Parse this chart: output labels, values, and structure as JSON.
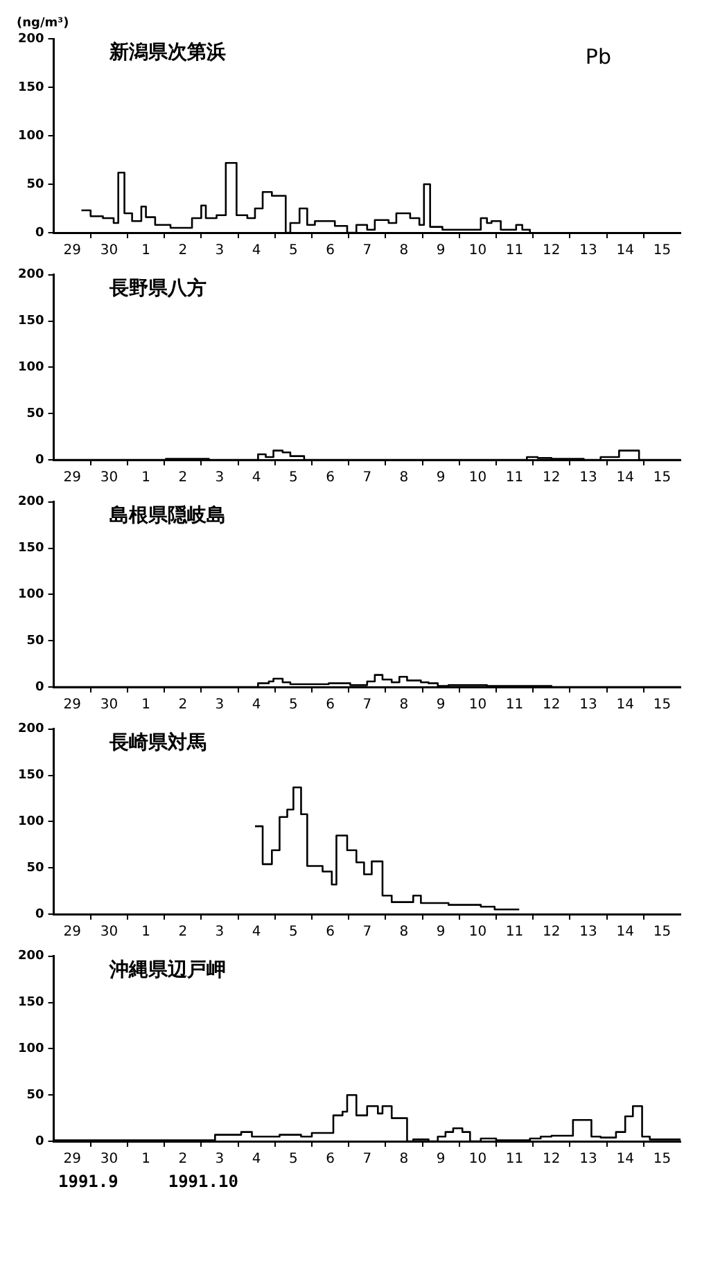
{
  "chart_data": [
    {
      "type": "step",
      "title": "新潟県次第浜",
      "subtitle": "Pb",
      "ylabel": "(ng/m³)",
      "color": "#000000",
      "x": [
        "1991-09-29T18:00",
        "1991-09-30T00:00",
        "1991-09-30T08:00",
        "1991-09-30T15:00",
        "1991-09-30T18:00",
        "1991-09-30T22:00",
        "1991-10-01T03:00",
        "1991-10-01T09:00",
        "1991-10-01T12:00",
        "1991-10-01T18:00",
        "1991-10-02T04:00",
        "1991-10-02T18:00",
        "1991-10-03T00:00",
        "1991-10-03T03:00",
        "1991-10-03T10:00",
        "1991-10-03T16:00",
        "1991-10-03T23:00",
        "1991-10-04T06:00",
        "1991-10-04T11:00",
        "1991-10-04T16:00",
        "1991-10-04T22:00",
        "1991-10-05T07:00",
        "1991-10-05T10:00",
        "1991-10-05T16:00",
        "1991-10-05T21:00",
        "1991-10-06T02:00",
        "1991-10-06T15:00",
        "1991-10-06T23:00",
        "1991-10-07T05:00",
        "1991-10-07T12:00",
        "1991-10-07T17:00",
        "1991-10-08T02:00",
        "1991-10-08T07:00",
        "1991-10-08T16:00",
        "1991-10-08T22:00",
        "1991-10-09T01:00",
        "1991-10-09T05:00",
        "1991-10-09T13:00",
        "1991-10-10T14:00",
        "1991-10-10T18:00",
        "1991-10-10T21:00",
        "1991-10-11T03:00",
        "1991-10-11T13:00",
        "1991-10-11T17:00",
        "1991-10-11T22:00"
      ],
      "values": [
        23,
        17,
        15,
        10,
        62,
        20,
        12,
        27,
        16,
        8,
        5,
        15,
        28,
        15,
        18,
        72,
        18,
        15,
        25,
        42,
        38,
        0,
        10,
        25,
        8,
        12,
        7,
        0,
        8,
        3,
        13,
        10,
        20,
        15,
        8,
        50,
        6,
        3,
        15,
        10,
        12,
        3,
        8,
        3,
        0
      ],
      "xlim": [
        "1991-09-29",
        "1991-10-16"
      ],
      "xticks": [
        {
          "value": "1991-09-29T12:00",
          "label": "29"
        },
        {
          "value": "1991-09-30",
          "label": null
        },
        {
          "value": "1991-09-30T12:00",
          "label": "30"
        },
        {
          "value": "1991-10-01",
          "label": null
        },
        {
          "value": "1991-10-01T12:00",
          "label": "1"
        },
        {
          "value": "1991-10-02",
          "label": null
        },
        {
          "value": "1991-10-02T12:00",
          "label": "2"
        },
        {
          "value": "1991-10-03",
          "label": null
        },
        {
          "value": "1991-10-03T12:00",
          "label": "3"
        },
        {
          "value": "1991-10-04",
          "label": null
        },
        {
          "value": "1991-10-04T12:00",
          "label": "4"
        },
        {
          "value": "1991-10-05",
          "label": null
        },
        {
          "value": "1991-10-05T12:00",
          "label": "5"
        },
        {
          "value": "1991-10-06",
          "label": null
        },
        {
          "value": "1991-10-06T12:00",
          "label": "6"
        },
        {
          "value": "1991-10-07",
          "label": null
        },
        {
          "value": "1991-10-07T12:00",
          "label": "7"
        },
        {
          "value": "1991-10-08",
          "label": null
        },
        {
          "value": "1991-10-08T12:00",
          "label": "8"
        },
        {
          "value": "1991-10-09",
          "label": null
        },
        {
          "value": "1991-10-09T12:00",
          "label": "9"
        },
        {
          "value": "1991-10-10",
          "label": null
        },
        {
          "value": "1991-10-10T12:00",
          "label": "10"
        },
        {
          "value": "1991-10-11",
          "label": null
        },
        {
          "value": "1991-10-11T12:00",
          "label": "11"
        },
        {
          "value": "1991-10-12",
          "label": null
        },
        {
          "value": "1991-10-12T12:00",
          "label": "12"
        },
        {
          "value": "1991-10-13",
          "label": null
        },
        {
          "value": "1991-10-13T12:00",
          "label": "13"
        },
        {
          "value": "1991-10-14",
          "label": null
        },
        {
          "value": "1991-10-14T12:00",
          "label": "14"
        },
        {
          "value": "1991-10-15",
          "label": null
        },
        {
          "value": "1991-10-15T12:00",
          "label": "15"
        }
      ],
      "ylim": [
        0,
        200
      ],
      "yticks": [
        0,
        50,
        100,
        150,
        200
      ]
    },
    {
      "type": "step",
      "title": "長野県八方",
      "color": "#000000",
      "x": [
        "1991-09-29T00:00",
        "1991-10-02T01:00",
        "1991-10-03T05:00",
        "1991-10-04T13:00",
        "1991-10-04T18:00",
        "1991-10-04T23:00",
        "1991-10-05T05:00",
        "1991-10-05T10:00",
        "1991-10-05T19:00",
        "1991-10-11T20:00",
        "1991-10-12T03:00",
        "1991-10-12T12:00",
        "1991-10-13T09:00",
        "1991-10-13T20:00",
        "1991-10-14T08:00",
        "1991-10-14T21:00",
        "1991-10-16T00:00"
      ],
      "values": [
        0,
        1,
        0,
        6,
        3,
        10,
        8,
        4,
        0,
        3,
        2,
        1,
        0,
        3,
        10,
        0,
        0
      ],
      "xlim": [
        "1991-09-29",
        "1991-10-16"
      ],
      "xticks": [
        {
          "value": "1991-09-29T12:00",
          "label": "29"
        },
        {
          "value": "1991-09-30",
          "label": null
        },
        {
          "value": "1991-09-30T12:00",
          "label": "30"
        },
        {
          "value": "1991-10-01",
          "label": null
        },
        {
          "value": "1991-10-01T12:00",
          "label": "1"
        },
        {
          "value": "1991-10-02",
          "label": null
        },
        {
          "value": "1991-10-02T12:00",
          "label": "2"
        },
        {
          "value": "1991-10-03",
          "label": null
        },
        {
          "value": "1991-10-03T12:00",
          "label": "3"
        },
        {
          "value": "1991-10-04",
          "label": null
        },
        {
          "value": "1991-10-04T12:00",
          "label": "4"
        },
        {
          "value": "1991-10-05",
          "label": null
        },
        {
          "value": "1991-10-05T12:00",
          "label": "5"
        },
        {
          "value": "1991-10-06",
          "label": null
        },
        {
          "value": "1991-10-06T12:00",
          "label": "6"
        },
        {
          "value": "1991-10-07",
          "label": null
        },
        {
          "value": "1991-10-07T12:00",
          "label": "7"
        },
        {
          "value": "1991-10-08",
          "label": null
        },
        {
          "value": "1991-10-08T12:00",
          "label": "8"
        },
        {
          "value": "1991-10-09",
          "label": null
        },
        {
          "value": "1991-10-09T12:00",
          "label": "9"
        },
        {
          "value": "1991-10-10",
          "label": null
        },
        {
          "value": "1991-10-10T12:00",
          "label": "10"
        },
        {
          "value": "1991-10-11",
          "label": null
        },
        {
          "value": "1991-10-11T12:00",
          "label": "11"
        },
        {
          "value": "1991-10-12",
          "label": null
        },
        {
          "value": "1991-10-12T12:00",
          "label": "12"
        },
        {
          "value": "1991-10-13",
          "label": null
        },
        {
          "value": "1991-10-13T12:00",
          "label": "13"
        },
        {
          "value": "1991-10-14",
          "label": null
        },
        {
          "value": "1991-10-14T12:00",
          "label": "14"
        },
        {
          "value": "1991-10-15",
          "label": null
        },
        {
          "value": "1991-10-15T12:00",
          "label": "15"
        }
      ],
      "ylim": [
        0,
        200
      ],
      "yticks": [
        0,
        50,
        100,
        150,
        200
      ]
    },
    {
      "type": "step",
      "title": "島根県隠岐島",
      "color": "#000000",
      "x": [
        "1991-09-29T00:00",
        "1991-10-04T13:00",
        "1991-10-04T20:00",
        "1991-10-04T23:00",
        "1991-10-05T05:00",
        "1991-10-05T10:00",
        "1991-10-06T11:00",
        "1991-10-07T01:00",
        "1991-10-07T12:00",
        "1991-10-07T17:00",
        "1991-10-07T22:00",
        "1991-10-08T04:00",
        "1991-10-08T09:00",
        "1991-10-08T14:00",
        "1991-10-08T23:00",
        "1991-10-09T04:00",
        "1991-10-09T10:00",
        "1991-10-09T17:00",
        "1991-10-10T18:00",
        "1991-10-12T12:00",
        "1991-10-16T00:00"
      ],
      "values": [
        0,
        4,
        6,
        9,
        5,
        3,
        4,
        2,
        6,
        13,
        8,
        5,
        11,
        7,
        5,
        4,
        1,
        2,
        1,
        0,
        0
      ],
      "xlim": [
        "1991-09-29",
        "1991-10-16"
      ],
      "xticks": [
        {
          "value": "1991-09-29T12:00",
          "label": "29"
        },
        {
          "value": "1991-09-30",
          "label": null
        },
        {
          "value": "1991-09-30T12:00",
          "label": "30"
        },
        {
          "value": "1991-10-01",
          "label": null
        },
        {
          "value": "1991-10-01T12:00",
          "label": "1"
        },
        {
          "value": "1991-10-02",
          "label": null
        },
        {
          "value": "1991-10-02T12:00",
          "label": "2"
        },
        {
          "value": "1991-10-03",
          "label": null
        },
        {
          "value": "1991-10-03T12:00",
          "label": "3"
        },
        {
          "value": "1991-10-04",
          "label": null
        },
        {
          "value": "1991-10-04T12:00",
          "label": "4"
        },
        {
          "value": "1991-10-05",
          "label": null
        },
        {
          "value": "1991-10-05T12:00",
          "label": "5"
        },
        {
          "value": "1991-10-06",
          "label": null
        },
        {
          "value": "1991-10-06T12:00",
          "label": "6"
        },
        {
          "value": "1991-10-07",
          "label": null
        },
        {
          "value": "1991-10-07T12:00",
          "label": "7"
        },
        {
          "value": "1991-10-08",
          "label": null
        },
        {
          "value": "1991-10-08T12:00",
          "label": "8"
        },
        {
          "value": "1991-10-09",
          "label": null
        },
        {
          "value": "1991-10-09T12:00",
          "label": "9"
        },
        {
          "value": "1991-10-10",
          "label": null
        },
        {
          "value": "1991-10-10T12:00",
          "label": "10"
        },
        {
          "value": "1991-10-11",
          "label": null
        },
        {
          "value": "1991-10-11T12:00",
          "label": "11"
        },
        {
          "value": "1991-10-12",
          "label": null
        },
        {
          "value": "1991-10-12T12:00",
          "label": "12"
        },
        {
          "value": "1991-10-13",
          "label": null
        },
        {
          "value": "1991-10-13T12:00",
          "label": "13"
        },
        {
          "value": "1991-10-14",
          "label": null
        },
        {
          "value": "1991-10-14T12:00",
          "label": "14"
        },
        {
          "value": "1991-10-15",
          "label": null
        },
        {
          "value": "1991-10-15T12:00",
          "label": "15"
        }
      ],
      "ylim": [
        0,
        200
      ],
      "yticks": [
        0,
        50,
        100,
        150,
        200
      ]
    },
    {
      "type": "step",
      "title": "長崎県対馬",
      "color": "#000000",
      "x": [
        "1991-10-04T11:00",
        "1991-10-04T16:00",
        "1991-10-04T22:00",
        "1991-10-05T03:00",
        "1991-10-05T08:00",
        "1991-10-05T12:00",
        "1991-10-05T17:00",
        "1991-10-05T21:00",
        "1991-10-06T07:00",
        "1991-10-06T13:00",
        "1991-10-06T16:00",
        "1991-10-06T23:00",
        "1991-10-07T05:00",
        "1991-10-07T10:00",
        "1991-10-07T15:00",
        "1991-10-07T22:00",
        "1991-10-08T04:00",
        "1991-10-08T18:00",
        "1991-10-08T23:00",
        "1991-10-09T17:00",
        "1991-10-10T14:00",
        "1991-10-10T23:00",
        "1991-10-11T15:00"
      ],
      "values": [
        95,
        54,
        69,
        105,
        113,
        137,
        108,
        52,
        46,
        32,
        85,
        69,
        56,
        43,
        57,
        20,
        13,
        20,
        12,
        10,
        8,
        5,
        5
      ],
      "xlim": [
        "1991-09-29",
        "1991-10-16"
      ],
      "xticks": [
        {
          "value": "1991-09-29T12:00",
          "label": "29"
        },
        {
          "value": "1991-09-30",
          "label": null
        },
        {
          "value": "1991-09-30T12:00",
          "label": "30"
        },
        {
          "value": "1991-10-01",
          "label": null
        },
        {
          "value": "1991-10-01T12:00",
          "label": "1"
        },
        {
          "value": "1991-10-02",
          "label": null
        },
        {
          "value": "1991-10-02T12:00",
          "label": "2"
        },
        {
          "value": "1991-10-03",
          "label": null
        },
        {
          "value": "1991-10-03T12:00",
          "label": "3"
        },
        {
          "value": "1991-10-04",
          "label": null
        },
        {
          "value": "1991-10-04T12:00",
          "label": "4"
        },
        {
          "value": "1991-10-05",
          "label": null
        },
        {
          "value": "1991-10-05T12:00",
          "label": "5"
        },
        {
          "value": "1991-10-06",
          "label": null
        },
        {
          "value": "1991-10-06T12:00",
          "label": "6"
        },
        {
          "value": "1991-10-07",
          "label": null
        },
        {
          "value": "1991-10-07T12:00",
          "label": "7"
        },
        {
          "value": "1991-10-08",
          "label": null
        },
        {
          "value": "1991-10-08T12:00",
          "label": "8"
        },
        {
          "value": "1991-10-09",
          "label": null
        },
        {
          "value": "1991-10-09T12:00",
          "label": "9"
        },
        {
          "value": "1991-10-10",
          "label": null
        },
        {
          "value": "1991-10-10T12:00",
          "label": "10"
        },
        {
          "value": "1991-10-11",
          "label": null
        },
        {
          "value": "1991-10-11T12:00",
          "label": "11"
        },
        {
          "value": "1991-10-12",
          "label": null
        },
        {
          "value": "1991-10-12T12:00",
          "label": "12"
        },
        {
          "value": "1991-10-13",
          "label": null
        },
        {
          "value": "1991-10-13T12:00",
          "label": "13"
        },
        {
          "value": "1991-10-14",
          "label": null
        },
        {
          "value": "1991-10-14T12:00",
          "label": "14"
        },
        {
          "value": "1991-10-15",
          "label": null
        },
        {
          "value": "1991-10-15T12:00",
          "label": "15"
        }
      ],
      "ylim": [
        0,
        200
      ],
      "yticks": [
        0,
        50,
        100,
        150,
        200
      ]
    },
    {
      "type": "step",
      "title": "沖縄県辺戸岬",
      "color": "#000000",
      "annotations": [
        "1991.9",
        "1991.10"
      ],
      "x": [
        "1991-09-29T00:00",
        "1991-10-03T09:00",
        "1991-10-04T02:00",
        "1991-10-04T09:00",
        "1991-10-05T03:00",
        "1991-10-05T17:00",
        "1991-10-06T00:00",
        "1991-10-06T14:00",
        "1991-10-06T20:00",
        "1991-10-06T23:00",
        "1991-10-07T05:00",
        "1991-10-07T12:00",
        "1991-10-07T19:00",
        "1991-10-07T22:00",
        "1991-10-08T04:00",
        "1991-10-08T14:00",
        "1991-10-08T18:00",
        "1991-10-09T04:00",
        "1991-10-09T10:00",
        "1991-10-09T15:00",
        "1991-10-09T20:00",
        "1991-10-10T02:00",
        "1991-10-10T07:00",
        "1991-10-10T14:00",
        "1991-10-11T00:00",
        "1991-10-11T22:00",
        "1991-10-12T05:00",
        "1991-10-12T12:00",
        "1991-10-13T02:00",
        "1991-10-13T14:00",
        "1991-10-13T20:00",
        "1991-10-14T06:00",
        "1991-10-14T12:00",
        "1991-10-14T17:00",
        "1991-10-14T23:00",
        "1991-10-15T04:00",
        "1991-10-16T00:00"
      ],
      "values": [
        1,
        7,
        10,
        5,
        7,
        5,
        9,
        28,
        32,
        50,
        28,
        38,
        30,
        38,
        25,
        0,
        2,
        0,
        5,
        10,
        14,
        10,
        0,
        3,
        1,
        3,
        5,
        6,
        23,
        5,
        4,
        10,
        27,
        38,
        5,
        2,
        2
      ],
      "xlim": [
        "1991-09-29",
        "1991-10-16"
      ],
      "xticks": [
        {
          "value": "1991-09-29T12:00",
          "label": "29"
        },
        {
          "value": "1991-09-30",
          "label": null
        },
        {
          "value": "1991-09-30T12:00",
          "label": "30"
        },
        {
          "value": "1991-10-01",
          "label": null
        },
        {
          "value": "1991-10-01T12:00",
          "label": "1"
        },
        {
          "value": "1991-10-02",
          "label": null
        },
        {
          "value": "1991-10-02T12:00",
          "label": "2"
        },
        {
          "value": "1991-10-03",
          "label": null
        },
        {
          "value": "1991-10-03T12:00",
          "label": "3"
        },
        {
          "value": "1991-10-04",
          "label": null
        },
        {
          "value": "1991-10-04T12:00",
          "label": "4"
        },
        {
          "value": "1991-10-05",
          "label": null
        },
        {
          "value": "1991-10-05T12:00",
          "label": "5"
        },
        {
          "value": "1991-10-06",
          "label": null
        },
        {
          "value": "1991-10-06T12:00",
          "label": "6"
        },
        {
          "value": "1991-10-07",
          "label": null
        },
        {
          "value": "1991-10-07T12:00",
          "label": "7"
        },
        {
          "value": "1991-10-08",
          "label": null
        },
        {
          "value": "1991-10-08T12:00",
          "label": "8"
        },
        {
          "value": "1991-10-09",
          "label": null
        },
        {
          "value": "1991-10-09T12:00",
          "label": "9"
        },
        {
          "value": "1991-10-10",
          "label": null
        },
        {
          "value": "1991-10-10T12:00",
          "label": "10"
        },
        {
          "value": "1991-10-11",
          "label": null
        },
        {
          "value": "1991-10-11T12:00",
          "label": "11"
        },
        {
          "value": "1991-10-12",
          "label": null
        },
        {
          "value": "1991-10-12T12:00",
          "label": "12"
        },
        {
          "value": "1991-10-13",
          "label": null
        },
        {
          "value": "1991-10-13T12:00",
          "label": "13"
        },
        {
          "value": "1991-10-14",
          "label": null
        },
        {
          "value": "1991-10-14T12:00",
          "label": "14"
        },
        {
          "value": "1991-10-15",
          "label": null
        },
        {
          "value": "1991-10-15T12:00",
          "label": "15"
        }
      ],
      "ylim": [
        0,
        200
      ],
      "yticks": [
        0,
        50,
        100,
        150,
        200
      ]
    }
  ]
}
